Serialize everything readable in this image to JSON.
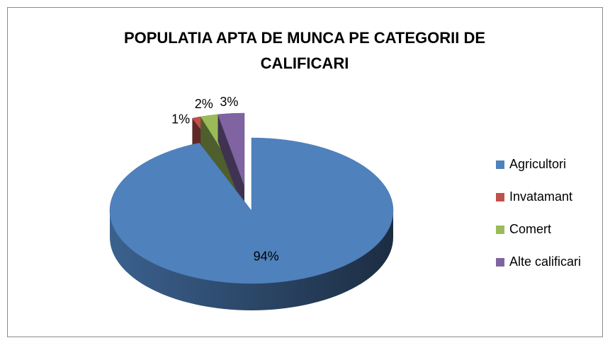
{
  "chart_data": {
    "type": "pie",
    "title": "POPULATIA APTA DE MUNCA PE CATEGORII DE CALIFICARI",
    "categories": [
      "Agricultori",
      "Invatamant",
      "Comert",
      "Alte calificari"
    ],
    "values": [
      94,
      1,
      2,
      3
    ],
    "value_labels": [
      "94%",
      "1%",
      "2%",
      "3%"
    ],
    "colors": [
      "#4f81bd",
      "#c0504d",
      "#9bbb59",
      "#8064a2"
    ],
    "legend": "right"
  }
}
